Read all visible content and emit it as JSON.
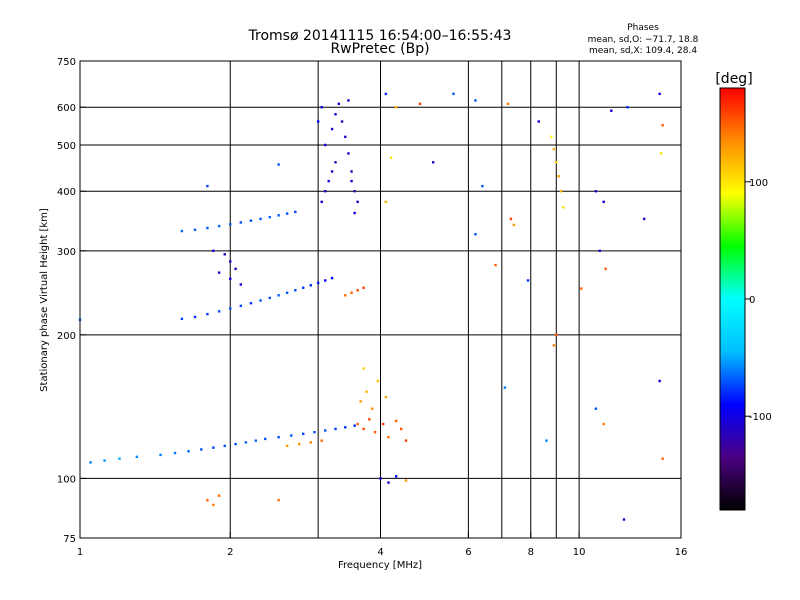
{
  "chart_data": {
    "type": "scatter",
    "title": "Tromsø 20141115 16:54:00–16:55:43",
    "subtitle": "RwPretec (Bp)",
    "xlabel": "Frequency [MHz]",
    "ylabel": "Stationary phase Virtual Height [km]",
    "x_scale": "log",
    "y_scale": "log",
    "xlim": [
      1,
      16
    ],
    "ylim": [
      75,
      750
    ],
    "x_ticks": [
      1,
      2,
      4,
      6,
      8,
      10,
      16
    ],
    "y_ticks": [
      75,
      100,
      200,
      300,
      400,
      500,
      600,
      750
    ],
    "grid": true,
    "stats": {
      "title": "Phases",
      "line_o": "mean, sd,O: −71.7, 18.8",
      "line_x": "mean, sd,X: 109.4, 28.4"
    },
    "colorbar": {
      "label": "[deg]",
      "range": [
        -180,
        180
      ],
      "ticks": [
        100,
        0,
        -100
      ],
      "colors": [
        "#000000",
        "#4b0082",
        "#0000ff",
        "#00bfff",
        "#00ffff",
        "#00ff00",
        "#ffff00",
        "#ff8c00",
        "#ff0000"
      ]
    },
    "points": [
      [
        1.05,
        108,
        -60
      ],
      [
        1.12,
        109,
        -55
      ],
      [
        1.2,
        110,
        -50
      ],
      [
        1.3,
        111,
        -58
      ],
      [
        1.45,
        112,
        -60
      ],
      [
        1.55,
        113,
        -62
      ],
      [
        1.65,
        114,
        -66
      ],
      [
        1.75,
        115,
        -70
      ],
      [
        1.85,
        116,
        -75
      ],
      [
        1.95,
        117,
        -70
      ],
      [
        2.05,
        118,
        -72
      ],
      [
        2.15,
        119,
        -68
      ],
      [
        2.25,
        120,
        -66
      ],
      [
        2.35,
        121,
        -70
      ],
      [
        2.5,
        122,
        -72
      ],
      [
        2.65,
        123,
        -70
      ],
      [
        2.8,
        124,
        -75
      ],
      [
        2.95,
        125,
        -72
      ],
      [
        3.1,
        126,
        -70
      ],
      [
        3.25,
        127,
        -75
      ],
      [
        3.4,
        128,
        -78
      ],
      [
        3.55,
        129,
        -80
      ],
      [
        2.6,
        117,
        130
      ],
      [
        2.75,
        118,
        135
      ],
      [
        2.9,
        119,
        140
      ],
      [
        3.05,
        120,
        145
      ],
      [
        3.6,
        130,
        150
      ],
      [
        3.7,
        127,
        155
      ],
      [
        3.8,
        133,
        160
      ],
      [
        3.9,
        125,
        150
      ],
      [
        4.05,
        130,
        160
      ],
      [
        4.15,
        122,
        145
      ],
      [
        4.3,
        132,
        150
      ],
      [
        4.4,
        127,
        155
      ],
      [
        4.5,
        120,
        160
      ],
      [
        3.65,
        145,
        130
      ],
      [
        3.75,
        152,
        120
      ],
      [
        3.85,
        140,
        135
      ],
      [
        3.95,
        160,
        110
      ],
      [
        4.1,
        148,
        125
      ],
      [
        3.7,
        170,
        110
      ],
      [
        1.8,
        90,
        150
      ],
      [
        1.85,
        88,
        140
      ],
      [
        1.9,
        92,
        145
      ],
      [
        2.5,
        90,
        145
      ],
      [
        4.0,
        100,
        -100
      ],
      [
        4.15,
        98,
        -110
      ],
      [
        4.3,
        101,
        -95
      ],
      [
        4.5,
        99,
        130
      ],
      [
        1.6,
        216,
        -75
      ],
      [
        1.7,
        218,
        -80
      ],
      [
        1.8,
        221,
        -78
      ],
      [
        1.9,
        224,
        -72
      ],
      [
        2.0,
        227,
        -70
      ],
      [
        2.1,
        230,
        -75
      ],
      [
        2.2,
        233,
        -78
      ],
      [
        2.3,
        236,
        -70
      ],
      [
        2.4,
        239,
        -72
      ],
      [
        2.5,
        242,
        -68
      ],
      [
        2.6,
        245,
        -70
      ],
      [
        2.7,
        248,
        -72
      ],
      [
        2.8,
        251,
        -75
      ],
      [
        2.9,
        254,
        -80
      ],
      [
        3.0,
        257,
        -85
      ],
      [
        3.1,
        260,
        -90
      ],
      [
        3.2,
        263,
        -95
      ],
      [
        3.5,
        245,
        150
      ],
      [
        3.6,
        248,
        155
      ],
      [
        3.7,
        251,
        160
      ],
      [
        3.4,
        242,
        145
      ],
      [
        1.85,
        300,
        -100
      ],
      [
        1.95,
        295,
        -110
      ],
      [
        2.0,
        285,
        -105
      ],
      [
        2.05,
        275,
        -115
      ],
      [
        1.9,
        270,
        -110
      ],
      [
        2.0,
        262,
        -100
      ],
      [
        2.1,
        255,
        -108
      ],
      [
        1.6,
        330,
        -65
      ],
      [
        1.7,
        332,
        -68
      ],
      [
        1.8,
        335,
        -70
      ],
      [
        1.9,
        338,
        -66
      ],
      [
        2.0,
        341,
        -68
      ],
      [
        2.1,
        344,
        -70
      ],
      [
        2.2,
        347,
        -72
      ],
      [
        2.3,
        350,
        -70
      ],
      [
        2.4,
        353,
        -68
      ],
      [
        2.5,
        356,
        -70
      ],
      [
        2.6,
        359,
        -72
      ],
      [
        2.7,
        362,
        -75
      ],
      [
        3.05,
        380,
        -105
      ],
      [
        3.1,
        400,
        -110
      ],
      [
        3.15,
        420,
        -100
      ],
      [
        3.2,
        440,
        -108
      ],
      [
        3.25,
        460,
        -115
      ],
      [
        3.1,
        500,
        -100
      ],
      [
        3.2,
        540,
        -110
      ],
      [
        3.25,
        580,
        -95
      ],
      [
        3.3,
        610,
        -105
      ],
      [
        3.35,
        560,
        -120
      ],
      [
        3.4,
        520,
        -110
      ],
      [
        3.45,
        480,
        -105
      ],
      [
        3.5,
        440,
        -115
      ],
      [
        3.55,
        400,
        -120
      ],
      [
        3.6,
        380,
        -110
      ],
      [
        3.55,
        360,
        -100
      ],
      [
        3.5,
        420,
        -112
      ],
      [
        3.45,
        620,
        -105
      ],
      [
        3.0,
        560,
        -90
      ],
      [
        3.05,
        600,
        -95
      ],
      [
        4.1,
        640,
        -80
      ],
      [
        4.3,
        600,
        120
      ],
      [
        4.8,
        610,
        160
      ],
      [
        5.1,
        460,
        -110
      ],
      [
        5.6,
        640,
        -70
      ],
      [
        6.2,
        620,
        -70
      ],
      [
        6.4,
        410,
        -70
      ],
      [
        7.2,
        610,
        140
      ],
      [
        7.3,
        350,
        160
      ],
      [
        7.4,
        340,
        130
      ],
      [
        8.3,
        560,
        -100
      ],
      [
        8.8,
        520,
        90
      ],
      [
        8.9,
        490,
        120
      ],
      [
        9.0,
        460,
        110
      ],
      [
        9.1,
        430,
        130
      ],
      [
        9.2,
        400,
        120
      ],
      [
        9.3,
        370,
        100
      ],
      [
        9.0,
        200,
        150
      ],
      [
        8.9,
        190,
        140
      ],
      [
        10.1,
        250,
        150
      ],
      [
        10.8,
        400,
        -110
      ],
      [
        11.2,
        380,
        -100
      ],
      [
        11.0,
        300,
        -110
      ],
      [
        11.3,
        275,
        150
      ],
      [
        11.6,
        590,
        -100
      ],
      [
        12.5,
        600,
        -80
      ],
      [
        13.5,
        350,
        -110
      ],
      [
        14.5,
        640,
        -100
      ],
      [
        14.7,
        550,
        150
      ],
      [
        14.6,
        480,
        100
      ],
      [
        11.2,
        130,
        140
      ],
      [
        10.8,
        140,
        -70
      ],
      [
        12.3,
        82,
        -110
      ],
      [
        14.7,
        110,
        150
      ],
      [
        14.5,
        160,
        -100
      ],
      [
        7.1,
        155,
        -60
      ],
      [
        8.6,
        120,
        -60
      ],
      [
        6.2,
        325,
        -70
      ],
      [
        7.9,
        260,
        -80
      ],
      [
        6.8,
        280,
        150
      ],
      [
        1.8,
        410,
        -75
      ],
      [
        2.5,
        455,
        -70
      ],
      [
        1.0,
        215,
        -60
      ],
      [
        4.2,
        470,
        100
      ],
      [
        4.1,
        380,
        120
      ]
    ]
  }
}
